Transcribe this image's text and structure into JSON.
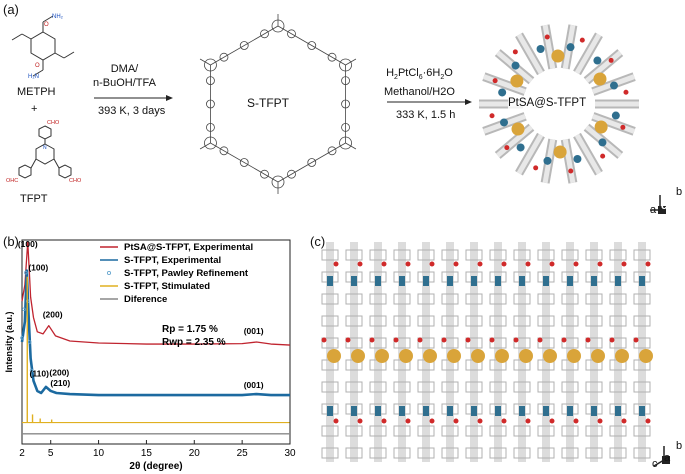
{
  "panels": {
    "a": "(a)",
    "b": "(b)",
    "c": "(c)"
  },
  "panel_a": {
    "reactant1": "METPH",
    "plus": "+",
    "reactant2": "TFPT",
    "step1": {
      "line1": "DMA/",
      "line2": "n-BuOH/TFA",
      "line3": "393 K, 3 days"
    },
    "intermediate": "S-TFPT",
    "step2": {
      "line1": "H2PtCl6·6H2O",
      "line2": "Methanol/H2O",
      "line3": "333 K, 1.5 h"
    },
    "product": "PtSA@S-TFPT",
    "axes": {
      "b": "b",
      "a": "a",
      "c": "c"
    }
  },
  "panel_c": {
    "axes": {
      "b": "b",
      "a": "a",
      "c": "c"
    }
  },
  "chart_data": {
    "type": "line",
    "xlabel": "2θ (degree)",
    "ylabel": "Intensity (a.u.)",
    "xlim": [
      2,
      30
    ],
    "xticks": [
      2,
      5,
      10,
      15,
      20,
      25,
      30
    ],
    "legend_position": "top-right",
    "stats": {
      "rp": "Rp = 1.75 %",
      "rwp": "Rwp = 2.35 %"
    },
    "series": [
      {
        "name": "PtSA@S-TFPT, Experimental",
        "color": "#c0242f",
        "x": [
          2.0,
          2.3,
          2.6,
          2.75,
          2.9,
          3.2,
          3.6,
          4.2,
          4.8,
          5.5,
          7,
          10,
          15,
          20,
          25,
          26.5,
          28,
          30
        ],
        "y": [
          0.7,
          0.78,
          0.99,
          0.86,
          0.72,
          0.62,
          0.55,
          0.54,
          0.58,
          0.53,
          0.505,
          0.495,
          0.49,
          0.49,
          0.492,
          0.5,
          0.49,
          0.485
        ]
      },
      {
        "name": "S-TFPT, Experimental",
        "color": "#1c6aa0",
        "x": [
          2.0,
          2.3,
          2.5,
          2.7,
          2.9,
          3.2,
          3.6,
          4.0,
          4.5,
          5.0,
          5.6,
          7,
          10,
          15,
          20,
          25,
          26.5,
          28,
          30
        ],
        "y": [
          0.5,
          0.6,
          0.85,
          0.62,
          0.42,
          0.31,
          0.26,
          0.25,
          0.28,
          0.26,
          0.25,
          0.245,
          0.24,
          0.24,
          0.24,
          0.24,
          0.245,
          0.24,
          0.24
        ]
      },
      {
        "name": "S-TFPT, Pawley Refinement",
        "color": "#6aa8d0",
        "x": [
          2.0,
          2.2,
          2.4,
          2.6,
          2.8,
          3.0
        ],
        "y": [
          0.52,
          0.66,
          0.84,
          0.7,
          0.5,
          0.36
        ]
      },
      {
        "name": "S-TFPT, Stimulated",
        "color": "#e0b020",
        "baseline": 0.105,
        "peaks": [
          [
            2.55,
            0.82
          ],
          [
            3.1,
            0.145
          ],
          [
            3.9,
            0.125
          ],
          [
            5.1,
            0.12
          ]
        ]
      },
      {
        "name": "Diference",
        "color": "#888888",
        "x": [
          2,
          30
        ],
        "y": [
          0.05,
          0.05
        ]
      }
    ],
    "annotations": [
      {
        "text": "(100)",
        "x": 2.6,
        "y": 0.965
      },
      {
        "text": "(100)",
        "x": 3.7,
        "y": 0.85
      },
      {
        "text": "(200)",
        "x": 5.2,
        "y": 0.62
      },
      {
        "text": "(001)",
        "x": 26.2,
        "y": 0.54
      },
      {
        "text": "(110)",
        "x": 3.8,
        "y": 0.33
      },
      {
        "text": "(200)",
        "x": 5.9,
        "y": 0.335
      },
      {
        "text": "(210)",
        "x": 6.0,
        "y": 0.285
      },
      {
        "text": "(001)",
        "x": 26.2,
        "y": 0.275
      }
    ]
  }
}
